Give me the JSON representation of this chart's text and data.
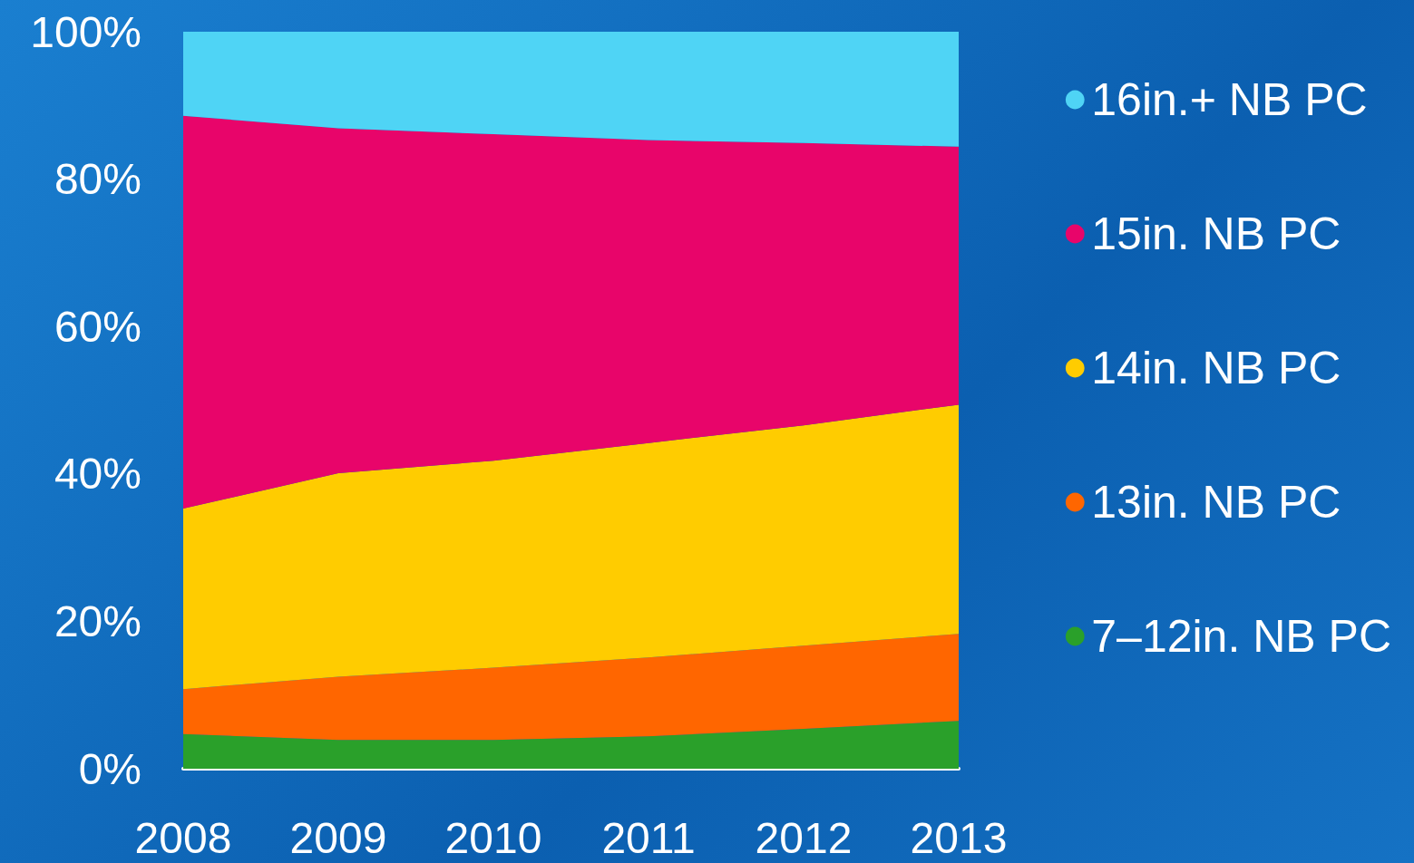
{
  "chart_data": {
    "type": "area",
    "stacked": true,
    "categories": [
      "2008",
      "2009",
      "2010",
      "2011",
      "2012",
      "2013"
    ],
    "ylim": [
      0,
      100
    ],
    "yticks": [
      {
        "value": 0,
        "label": "0%"
      },
      {
        "value": 20,
        "label": "20%"
      },
      {
        "value": 40,
        "label": "40%"
      },
      {
        "value": 60,
        "label": "60%"
      },
      {
        "value": 80,
        "label": "80%"
      },
      {
        "value": 100,
        "label": "100%"
      }
    ],
    "legend": "right",
    "grid": false,
    "series": [
      {
        "name": "7–12in. NB PC",
        "color": "#2aa02a",
        "values": [
          4.7,
          3.9,
          3.9,
          4.4,
          5.4,
          6.5
        ]
      },
      {
        "name": "13in. NB PC",
        "color": "#ff6600",
        "values": [
          6.1,
          8.6,
          9.8,
          10.7,
          11.3,
          11.8
        ]
      },
      {
        "name": "14in. NB PC",
        "color": "#ffcc00",
        "values": [
          24.5,
          27.6,
          28.1,
          29.1,
          29.9,
          31.1
        ]
      },
      {
        "name": "15in. NB PC",
        "color": "#e8056a",
        "values": [
          53.3,
          46.8,
          44.3,
          41.1,
          38.3,
          35.0
        ]
      },
      {
        "name": "16in.+ NB PC",
        "color": "#4fd4f5",
        "values": [
          11.4,
          13.1,
          13.9,
          14.7,
          15.1,
          15.6
        ]
      }
    ]
  }
}
